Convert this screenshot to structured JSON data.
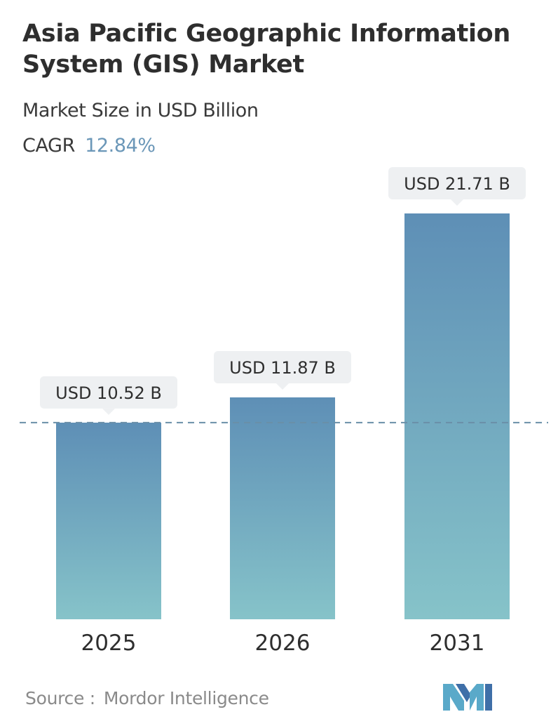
{
  "header": {
    "title": "Asia Pacific Geographic Information System (GIS) Market",
    "subtitle": "Market Size in USD Billion",
    "cagr_label": "CAGR",
    "cagr_value": "12.84%"
  },
  "chart_data": {
    "type": "bar",
    "title": "Asia Pacific Geographic Information System (GIS) Market",
    "subtitle": "Market Size in USD Billion",
    "categories": [
      "2025",
      "2026",
      "2031"
    ],
    "values": [
      10.52,
      11.87,
      21.71
    ],
    "data_labels": [
      "USD 10.52 B",
      "USD 11.87 B",
      "USD 21.71 B"
    ],
    "ylabel": "",
    "xlabel": "",
    "ylim": [
      0,
      21.71
    ],
    "grid": false,
    "reference_line": {
      "value": 10.52,
      "style": "dashed"
    },
    "colors": {
      "bar_top": "#5e8fb6",
      "bar_bottom": "#86c3c9",
      "reference_line": "#6a8fa8",
      "label_bg": "#eef0f2"
    }
  },
  "footer": {
    "source_label": "Source :",
    "source_name": "Mordor Intelligence",
    "logo_icon": "mordor-intelligence-logo-icon"
  }
}
